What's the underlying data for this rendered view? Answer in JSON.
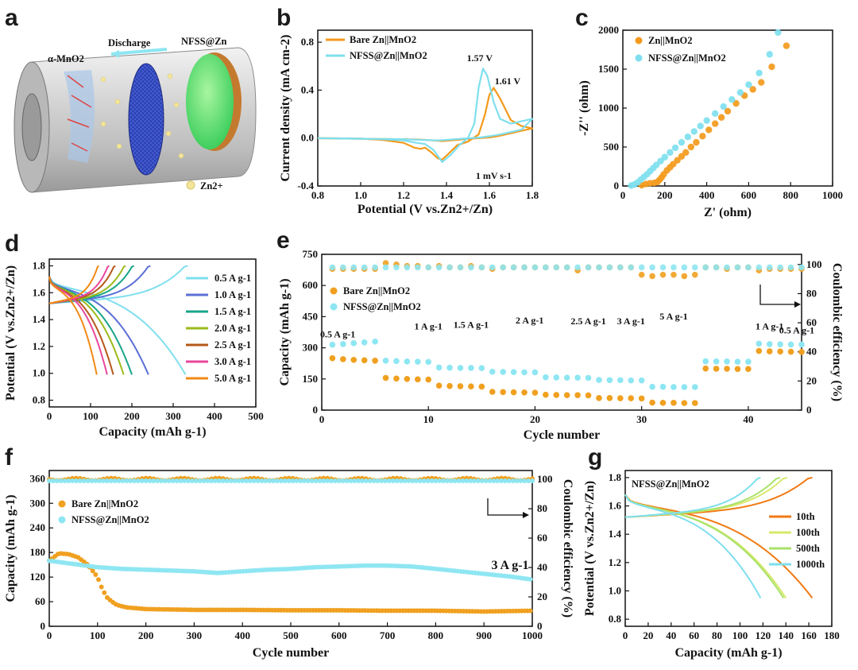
{
  "colors": {
    "orange": "#f39a1c",
    "cyan": "#7fdfee",
    "bar_orange": "#f0a020",
    "bar_cyan": "#8ee6f2",
    "cell_body": "#c9c9c9",
    "separator": "#2a3fb0",
    "zn_layer": "#66e07a"
  },
  "panel_labels": [
    "a",
    "b",
    "c",
    "d",
    "e",
    "f",
    "g"
  ],
  "panel_a": {
    "labels": [
      "α-MnO2",
      "Discharge",
      "NFSS@Zn",
      "Zn2+"
    ]
  },
  "chart_data": [
    {
      "id": "b",
      "type": "line",
      "xlabel": "Potential (V vs.Zn2+/Zn)",
      "ylabel": "Current density (mA cm-2)",
      "xlim": [
        0.8,
        1.8
      ],
      "ylim": [
        -0.4,
        0.9
      ],
      "xticks": [
        0.8,
        1.0,
        1.2,
        1.4,
        1.6,
        1.8
      ],
      "yticks": [
        -0.4,
        0.0,
        0.4,
        0.8
      ],
      "xtick_labels": [
        "0.8",
        "1.0",
        "1.2",
        "1.4",
        "1.6",
        "1.8"
      ],
      "ytick_labels": [
        "-0.4",
        "0.0",
        "0.4",
        "0.8"
      ],
      "legend": [
        "Bare Zn||MnO2",
        "NFSS@Zn||MnO2"
      ],
      "annotations": [
        "1.57 V",
        "1.61 V",
        "1 mV s-1"
      ],
      "series": [
        {
          "name": "Bare Zn||MnO2",
          "color": "orange",
          "x": [
            0.8,
            1.0,
            1.1,
            1.2,
            1.25,
            1.28,
            1.3,
            1.33,
            1.36,
            1.38,
            1.41,
            1.45,
            1.5,
            1.55,
            1.58,
            1.6,
            1.62,
            1.65,
            1.7,
            1.75,
            1.8,
            1.75,
            1.7,
            1.65,
            1.62,
            1.6,
            1.56,
            1.52,
            1.48,
            1.45,
            1.42,
            1.38,
            1.34,
            1.3,
            1.26,
            1.2,
            1.1,
            1.0,
            0.9,
            0.8
          ],
          "y": [
            0.0,
            -0.005,
            -0.015,
            -0.04,
            -0.08,
            -0.09,
            -0.08,
            -0.12,
            -0.17,
            -0.18,
            -0.13,
            -0.06,
            -0.03,
            0.03,
            0.2,
            0.36,
            0.42,
            0.33,
            0.15,
            0.1,
            0.08,
            0.06,
            0.04,
            0.02,
            0.01,
            0.005,
            0.0,
            -0.005,
            -0.01,
            -0.015,
            -0.02,
            -0.025,
            -0.02,
            -0.015,
            -0.012,
            -0.01,
            -0.008,
            -0.006,
            -0.004,
            -0.002
          ]
        },
        {
          "name": "NFSS@Zn||MnO2",
          "color": "cyan",
          "x": [
            0.8,
            1.0,
            1.1,
            1.2,
            1.26,
            1.3,
            1.34,
            1.38,
            1.42,
            1.46,
            1.5,
            1.53,
            1.55,
            1.57,
            1.59,
            1.62,
            1.65,
            1.7,
            1.75,
            1.8,
            1.75,
            1.7,
            1.65,
            1.6,
            1.56,
            1.52,
            1.48,
            1.44,
            1.4,
            1.36,
            1.32,
            1.28,
            1.2,
            1.1,
            1.0,
            0.9,
            0.8
          ],
          "y": [
            0.0,
            -0.005,
            -0.01,
            -0.02,
            -0.04,
            -0.05,
            -0.1,
            -0.2,
            -0.14,
            -0.06,
            0.0,
            0.12,
            0.42,
            0.58,
            0.52,
            0.3,
            0.16,
            0.12,
            0.14,
            0.16,
            0.07,
            0.05,
            0.03,
            0.015,
            0.005,
            0.0,
            -0.005,
            -0.01,
            -0.015,
            -0.02,
            -0.018,
            -0.015,
            -0.01,
            -0.008,
            -0.006,
            -0.004,
            -0.002
          ]
        }
      ]
    },
    {
      "id": "c",
      "type": "scatter",
      "xlabel": "Z' (ohm)",
      "ylabel": "-Z'' (ohm)",
      "xlim": [
        0,
        1000
      ],
      "ylim": [
        0,
        2000
      ],
      "xticks": [
        0,
        200,
        400,
        600,
        800,
        1000
      ],
      "yticks": [
        0,
        500,
        1000,
        1500,
        2000
      ],
      "xtick_labels": [
        "0",
        "200",
        "400",
        "600",
        "800",
        "1000"
      ],
      "ytick_labels": [
        "0",
        "500",
        "1000",
        "1500",
        "2000"
      ],
      "legend": [
        "Zn||MnO2",
        "NFSS@Zn||MnO2"
      ],
      "series": [
        {
          "name": "Zn||MnO2",
          "color": "orange",
          "x": [
            90,
            110,
            130,
            150,
            165,
            175,
            185,
            195,
            210,
            225,
            240,
            260,
            280,
            300,
            325,
            350,
            380,
            410,
            440,
            470,
            500,
            540,
            580,
            620,
            660,
            710,
            780
          ],
          "y": [
            10,
            25,
            35,
            40,
            50,
            80,
            110,
            150,
            200,
            240,
            280,
            330,
            380,
            430,
            500,
            560,
            640,
            720,
            800,
            880,
            960,
            1060,
            1160,
            1240,
            1330,
            1530,
            1800
          ]
        },
        {
          "name": "NFSS@Zn||MnO2",
          "color": "cyan",
          "x": [
            40,
            55,
            70,
            85,
            100,
            115,
            130,
            145,
            160,
            180,
            200,
            225,
            250,
            280,
            310,
            340,
            370,
            400,
            440,
            480,
            520,
            560,
            600,
            650,
            700,
            740
          ],
          "y": [
            5,
            20,
            45,
            80,
            115,
            150,
            190,
            230,
            270,
            320,
            370,
            430,
            490,
            560,
            630,
            700,
            770,
            840,
            930,
            1020,
            1110,
            1200,
            1300,
            1450,
            1690,
            1970
          ]
        }
      ]
    },
    {
      "id": "d",
      "type": "line",
      "xlabel": "Capacity (mAh g-1)",
      "ylabel": "Potential (V vs.Zn2+/Zn)",
      "xlim": [
        0,
        500
      ],
      "ylim": [
        0.75,
        1.85
      ],
      "xticks": [
        0,
        100,
        200,
        300,
        400,
        500
      ],
      "yticks": [
        0.8,
        1.0,
        1.2,
        1.4,
        1.6,
        1.8
      ],
      "xtick_labels": [
        "0",
        "100",
        "200",
        "300",
        "400",
        "500"
      ],
      "ytick_labels": [
        "0.8",
        "1.0",
        "1.2",
        "1.4",
        "1.6",
        "1.8"
      ],
      "legend": [
        "0.5 A g-1",
        "1.0 A g-1",
        "1.5 A g-1",
        "2.0 A g-1",
        "2.5 A g-1",
        "3.0 A g-1",
        "5.0 A g-1"
      ],
      "series": [
        {
          "name": "0.5 A g-1",
          "color": "#7fdfee",
          "discharge_cap": 330,
          "charge_cap": 335
        },
        {
          "name": "1.0 A g-1",
          "color": "#5b6fd6",
          "discharge_cap": 240,
          "charge_cap": 245
        },
        {
          "name": "1.5 A g-1",
          "color": "#1aa58a",
          "discharge_cap": 200,
          "charge_cap": 205
        },
        {
          "name": "2.0 A g-1",
          "color": "#9bbb1a",
          "discharge_cap": 180,
          "charge_cap": 185
        },
        {
          "name": "2.5 A g-1",
          "color": "#b5581a",
          "discharge_cap": 155,
          "charge_cap": 160
        },
        {
          "name": "3.0 A g-1",
          "color": "#e8479a",
          "discharge_cap": 140,
          "charge_cap": 145
        },
        {
          "name": "5.0 A g-1",
          "color": "#f08a14",
          "discharge_cap": 115,
          "charge_cap": 120
        }
      ]
    },
    {
      "id": "e",
      "type": "scatter",
      "xlabel": "Cycle number",
      "ylabel": "Capacity (mAh g-1)",
      "y2label": "Coulombic efficiency (%)",
      "xlim": [
        0,
        45
      ],
      "ylim": [
        0,
        750
      ],
      "y2lim": [
        0,
        107
      ],
      "xticks": [
        0,
        10,
        20,
        30,
        40
      ],
      "yticks": [
        0,
        150,
        300,
        450,
        600,
        750
      ],
      "y2ticks": [
        0,
        20,
        40,
        60,
        80,
        100
      ],
      "xtick_labels": [
        "0",
        "10",
        "20",
        "30",
        "40"
      ],
      "ytick_labels": [
        "0",
        "150",
        "300",
        "450",
        "600",
        "750"
      ],
      "y2tick_labels": [
        "0",
        "20",
        "40",
        "60",
        "80",
        "100"
      ],
      "legend": [
        "Bare Zn||MnO2",
        "NFSS@Zn||MnO2"
      ],
      "rate_labels": [
        "0.5 A g-1",
        "1 A g-1",
        "1.5 A g-1",
        "2 A g-1",
        "2.5 A g-1",
        "3 A g-1",
        "5 A g-1",
        "1 A g-1",
        "0.5 A g-1"
      ],
      "bare_capacity": [
        250,
        245,
        242,
        240,
        238,
        155,
        152,
        150,
        148,
        147,
        118,
        116,
        115,
        114,
        113,
        88,
        87,
        86,
        85,
        84,
        74,
        73,
        72,
        72,
        71,
        58,
        58,
        57,
        57,
        56,
        36,
        35,
        35,
        34,
        34,
        200,
        199,
        199,
        198,
        198,
        285,
        283,
        282,
        281,
        280
      ],
      "nfss_capacity": [
        315,
        318,
        322,
        326,
        330,
        238,
        236,
        234,
        233,
        232,
        205,
        204,
        203,
        203,
        202,
        185,
        184,
        183,
        182,
        182,
        158,
        157,
        156,
        156,
        155,
        145,
        144,
        144,
        143,
        143,
        112,
        112,
        111,
        111,
        111,
        235,
        234,
        234,
        233,
        233,
        320,
        318,
        317,
        316,
        316
      ],
      "bare_ce": [
        97,
        97,
        97,
        97,
        97,
        101,
        100,
        99,
        99,
        98,
        99,
        98,
        98,
        99,
        98,
        97,
        98,
        98,
        98,
        98,
        98,
        98,
        98,
        96,
        98,
        98,
        98,
        98,
        98,
        93,
        92,
        93,
        93,
        92,
        93,
        98,
        98,
        97,
        98,
        98,
        96,
        97,
        97,
        97,
        97
      ],
      "nfss_ce": [
        98,
        98,
        98,
        98,
        98,
        98,
        98,
        98,
        98,
        98,
        98,
        98,
        98,
        98,
        98,
        98,
        98,
        98,
        98,
        98,
        98,
        98,
        98,
        98,
        98,
        98,
        98,
        98,
        98,
        98,
        98,
        98,
        98,
        98,
        98,
        98,
        98,
        98,
        98,
        98,
        98,
        98,
        98,
        98,
        98
      ]
    },
    {
      "id": "f",
      "type": "scatter",
      "xlabel": "Cycle number",
      "ylabel": "Capacity (mAh g-1)",
      "y2label": "Coulombic efficiency (%)",
      "xlim": [
        0,
        1000
      ],
      "ylim": [
        0,
        380
      ],
      "y2lim": [
        0,
        106
      ],
      "xticks": [
        0,
        100,
        200,
        300,
        400,
        500,
        600,
        700,
        800,
        900,
        1000
      ],
      "yticks": [
        0,
        60,
        120,
        180,
        240,
        300,
        360
      ],
      "y2ticks": [
        0,
        20,
        40,
        60,
        80,
        100
      ],
      "xtick_labels": [
        "0",
        "100",
        "200",
        "300",
        "400",
        "500",
        "600",
        "700",
        "800",
        "900",
        "1000"
      ],
      "ytick_labels": [
        "0",
        "60",
        "120",
        "180",
        "240",
        "300",
        "360"
      ],
      "y2tick_labels": [
        "0",
        "20",
        "40",
        "60",
        "80",
        "100"
      ],
      "legend": [
        "Bare Zn||MnO2",
        "NFSS@Zn||MnO2"
      ],
      "rate_label": "3 A g-1",
      "bare_capacity": {
        "x": [
          0,
          20,
          40,
          60,
          80,
          100,
          110,
          120,
          130,
          140,
          160,
          200,
          300,
          400,
          500,
          600,
          700,
          800,
          900,
          1000
        ],
        "y": [
          160,
          178,
          176,
          168,
          150,
          120,
          90,
          70,
          60,
          52,
          46,
          42,
          40,
          40,
          39,
          39,
          38,
          38,
          36,
          38
        ]
      },
      "nfss_capacity": {
        "x": [
          0,
          50,
          100,
          150,
          200,
          250,
          300,
          350,
          400,
          450,
          500,
          550,
          600,
          650,
          700,
          750,
          800,
          850,
          900,
          950,
          1000
        ],
        "y": [
          160,
          152,
          144,
          140,
          138,
          136,
          134,
          130,
          134,
          138,
          140,
          144,
          146,
          148,
          148,
          146,
          140,
          134,
          128,
          122,
          114
        ]
      },
      "bare_ce": 100,
      "nfss_ce": 99
    },
    {
      "id": "g",
      "type": "line",
      "title": "NFSS@Zn||MnO2",
      "xlabel": "Capacity (mAh g-1)",
      "ylabel": "Potential (V vs.Zn2+/Zn)",
      "xlim": [
        0,
        180
      ],
      "ylim": [
        0.75,
        1.85
      ],
      "xticks": [
        0,
        20,
        40,
        60,
        80,
        100,
        120,
        140,
        160,
        180
      ],
      "yticks": [
        0.8,
        1.0,
        1.2,
        1.4,
        1.6,
        1.8
      ],
      "xtick_labels": [
        "0",
        "20",
        "40",
        "60",
        "80",
        "100",
        "120",
        "140",
        "160",
        "180"
      ],
      "ytick_labels": [
        "0.8",
        "1.0",
        "1.2",
        "1.4",
        "1.6",
        "1.8"
      ],
      "legend": [
        "10th",
        "100th",
        "500th",
        "1000th"
      ],
      "series": [
        {
          "name": "10th",
          "color": "#f07a14",
          "discharge_cap": 163,
          "charge_cap": 163
        },
        {
          "name": "100th",
          "color": "#d8e86a",
          "discharge_cap": 140,
          "charge_cap": 141
        },
        {
          "name": "500th",
          "color": "#a8e26a",
          "discharge_cap": 138,
          "charge_cap": 135
        },
        {
          "name": "1000th",
          "color": "#7fdfee",
          "discharge_cap": 118,
          "charge_cap": 118
        }
      ]
    }
  ]
}
